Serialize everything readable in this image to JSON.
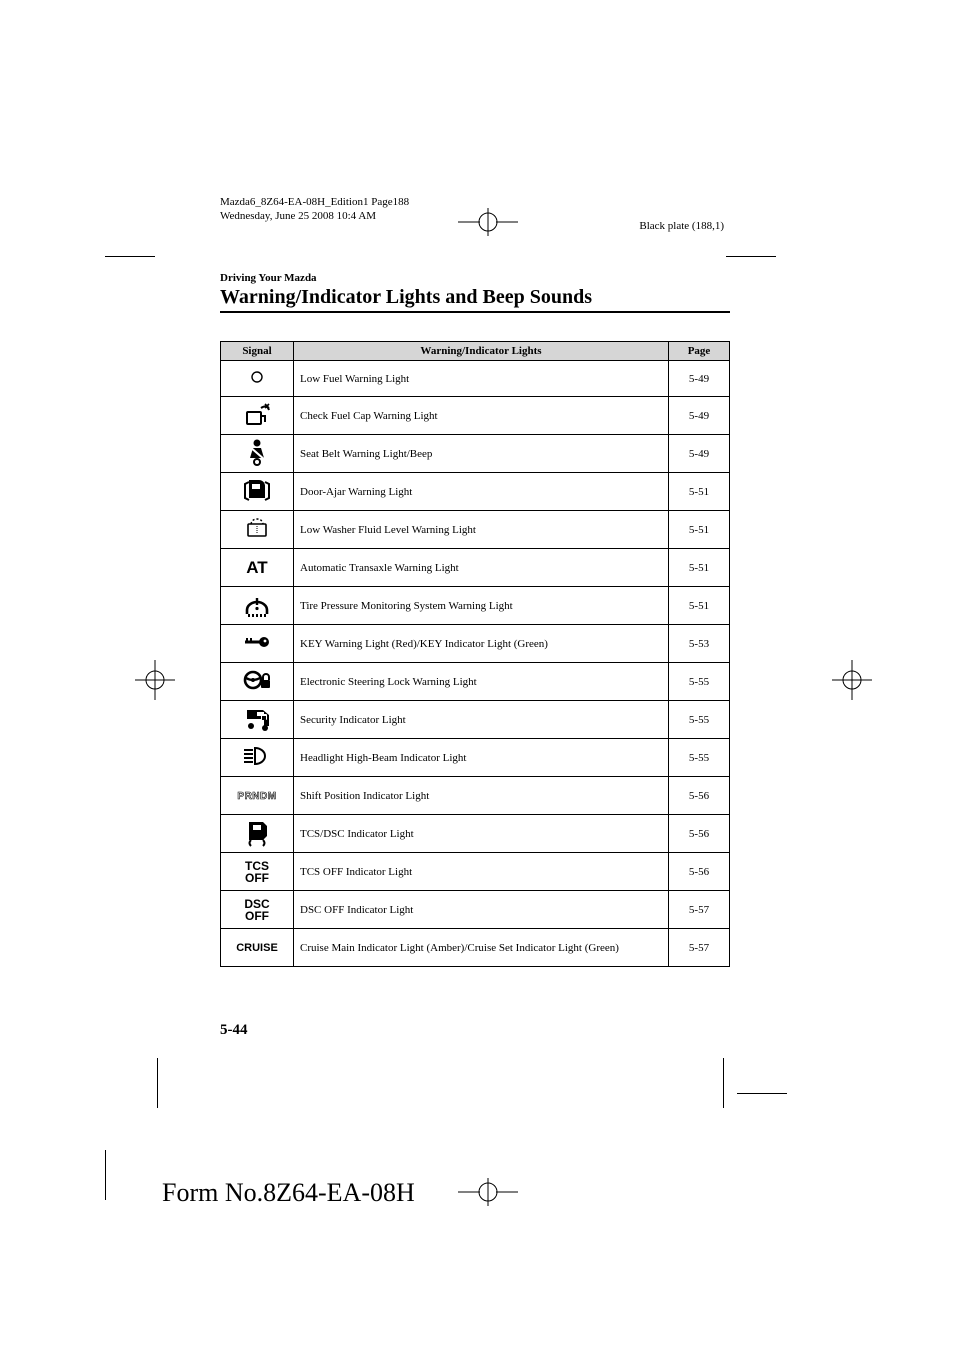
{
  "meta": {
    "doc_line1": "Mazda6_8Z64-EA-08H_Edition1 Page188",
    "doc_line2": "Wednesday, June 25 2008 10:4 AM",
    "plate": "Black plate (188,1)"
  },
  "section": {
    "small": "Driving Your Mazda",
    "title": "Warning/Indicator Lights and Beep Sounds"
  },
  "table": {
    "headers": {
      "signal": "Signal",
      "desc": "Warning/Indicator Lights",
      "page": "Page"
    },
    "rows": [
      {
        "icon": "low-fuel",
        "label": "Low Fuel Warning Light",
        "page": "5-49",
        "first": true
      },
      {
        "icon": "fuel-cap",
        "label": "Check Fuel Cap Warning Light",
        "page": "5-49"
      },
      {
        "icon": "seat-belt",
        "label": "Seat Belt Warning Light/Beep",
        "page": "5-49"
      },
      {
        "icon": "door-ajar",
        "label": "Door-Ajar Warning Light",
        "page": "5-51"
      },
      {
        "icon": "washer",
        "label": "Low Washer Fluid Level Warning Light",
        "page": "5-51"
      },
      {
        "icon": "at",
        "label": "Automatic Transaxle Warning Light",
        "page": "5-51"
      },
      {
        "icon": "tpms",
        "label": "Tire Pressure Monitoring System Warning Light",
        "page": "5-51"
      },
      {
        "icon": "key",
        "label": "KEY Warning Light (Red)/KEY Indicator Light (Green)",
        "page": "5-53"
      },
      {
        "icon": "steer-lock",
        "label": "Electronic Steering Lock Warning Light",
        "page": "5-55"
      },
      {
        "icon": "security",
        "label": "Security Indicator Light",
        "page": "5-55"
      },
      {
        "icon": "high-beam",
        "label": "Headlight High-Beam Indicator Light",
        "page": "5-55"
      },
      {
        "icon": "shift",
        "label": "Shift Position Indicator Light",
        "page": "5-56"
      },
      {
        "icon": "tcs-dsc",
        "label": "TCS/DSC Indicator Light",
        "page": "5-56"
      },
      {
        "icon": "tcs-off",
        "label": "TCS OFF Indicator Light",
        "page": "5-56"
      },
      {
        "icon": "dsc-off",
        "label": "DSC OFF Indicator Light",
        "page": "5-57"
      },
      {
        "icon": "cruise",
        "label": "Cruise Main Indicator Light (Amber)/Cruise Set Indicator Light (Green)",
        "page": "5-57"
      }
    ]
  },
  "icons_text": {
    "at": "AT",
    "tcs-off-1": "TCS",
    "tcs-off-2": "OFF",
    "dsc-off-1": "DSC",
    "dsc-off-2": "OFF",
    "cruise": "CRUISE",
    "shift": "PRNDM"
  },
  "footer": {
    "page_num": "5-44",
    "form": "Form No.8Z64-EA-08H"
  },
  "colors": {
    "text": "#000000",
    "bg": "#ffffff",
    "header_fill": "#d6d6d6",
    "border": "#000000"
  }
}
